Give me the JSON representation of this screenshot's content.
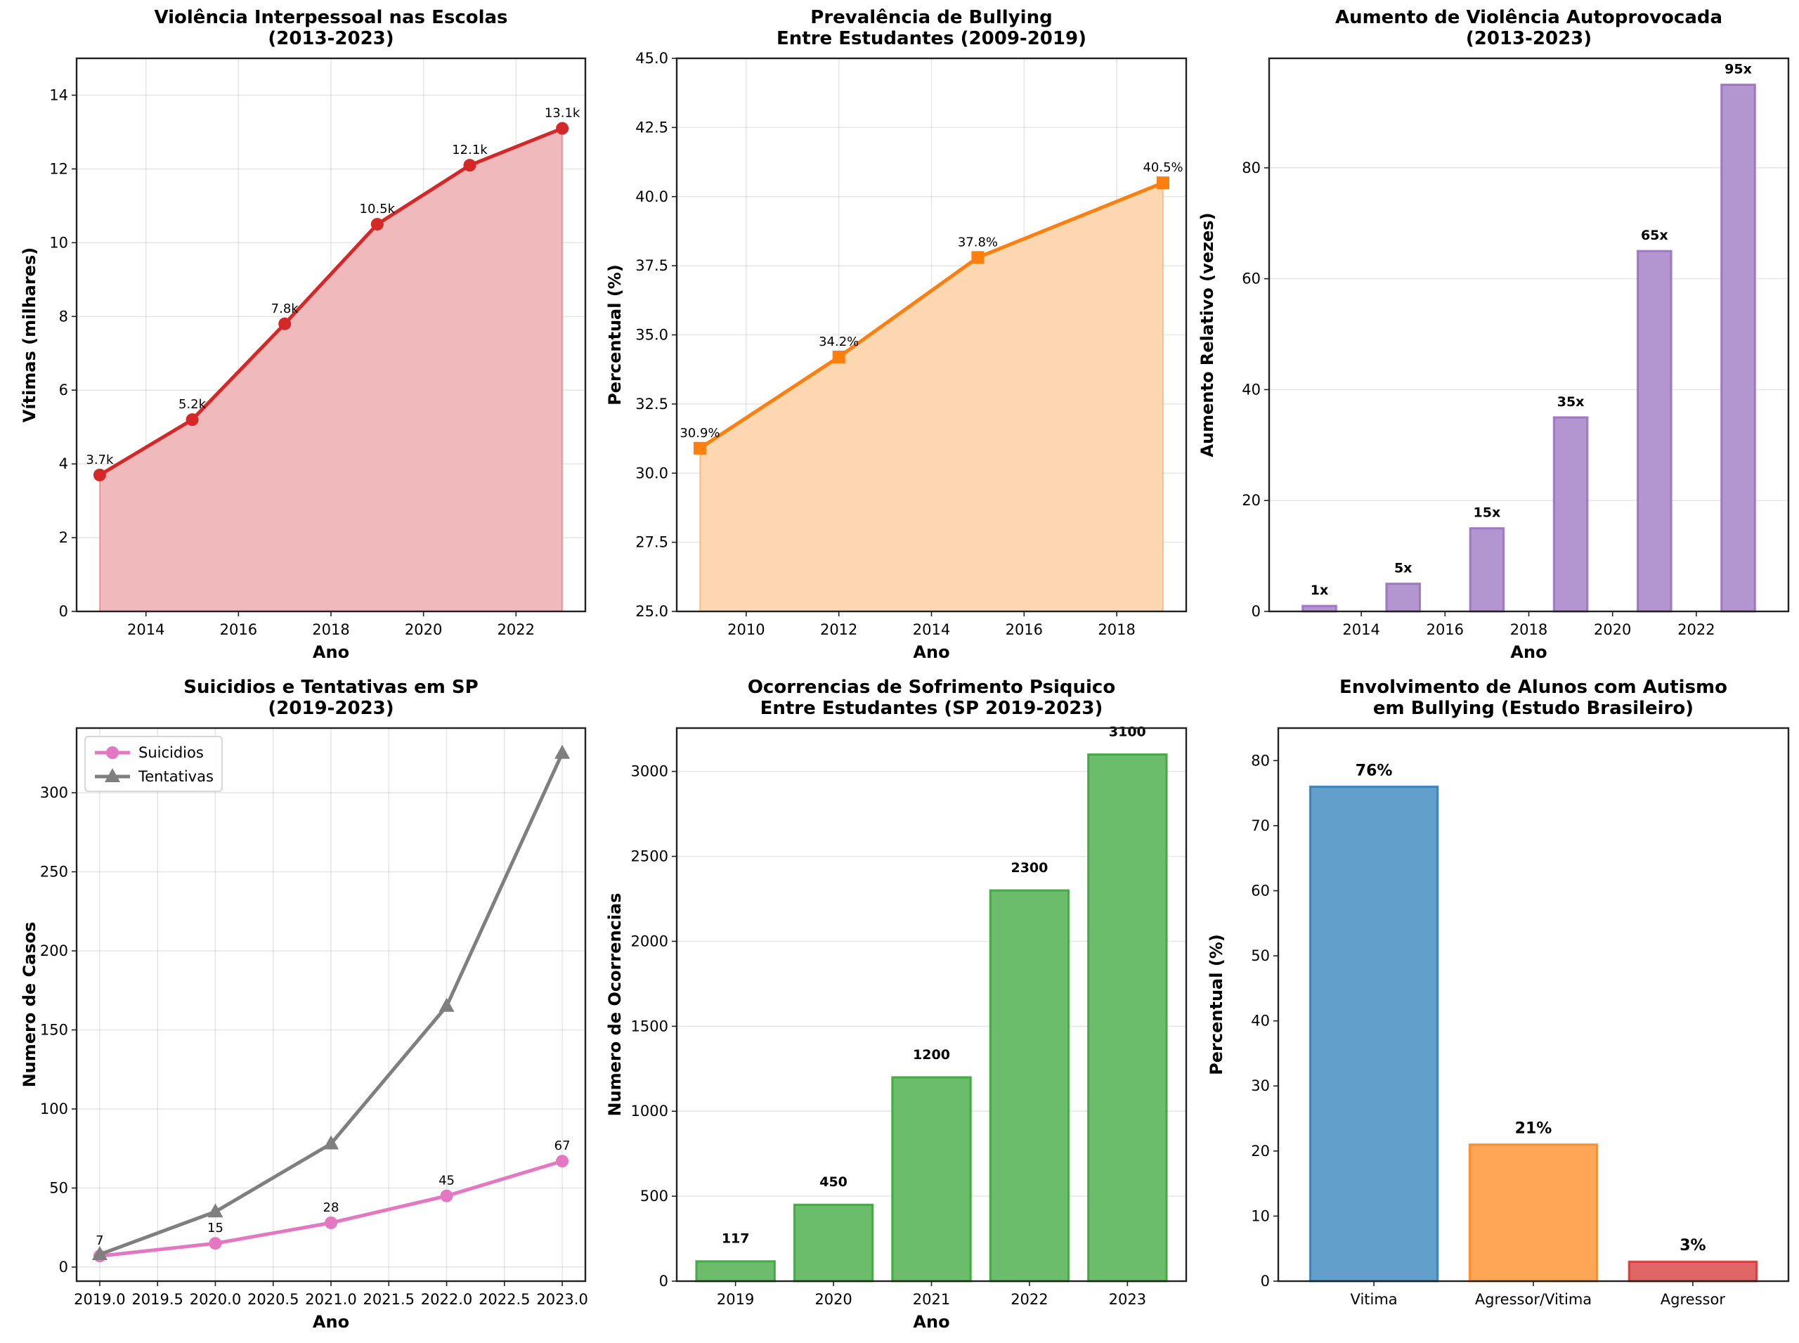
{
  "figure": {
    "layout": "2 rows x 3 columns"
  },
  "chart_data": [
    {
      "id": "violencia-interpessoal",
      "type": "area",
      "title": "Violência Interpessoal nas Escolas\n(2013-2023)",
      "xlabel": "Ano",
      "ylabel": "Vítimas (milhares)",
      "xlim": [
        2012.5,
        2023.5
      ],
      "ylim": [
        0,
        15
      ],
      "xticks": [
        2014,
        2016,
        2018,
        2020,
        2022
      ],
      "yticks": [
        0,
        2,
        4,
        6,
        8,
        10,
        12,
        14
      ],
      "grid": "both",
      "x": [
        2013,
        2015,
        2017,
        2019,
        2021,
        2023
      ],
      "series": [
        {
          "name": "Vítimas",
          "values": [
            3.7,
            5.2,
            7.8,
            10.5,
            12.1,
            13.1
          ],
          "color": "#d62728",
          "fill": "#f0b9bc",
          "marker": "circle",
          "labels": [
            "3.7k",
            "5.2k",
            "7.8k",
            "10.5k",
            "12.1k",
            "13.1k"
          ]
        }
      ]
    },
    {
      "id": "prevalencia-bullying",
      "type": "area",
      "title": "Prevalência de Bullying\nEntre Estudantes (2009-2019)",
      "xlabel": "Ano",
      "ylabel": "Percentual (%)",
      "xlim": [
        2008.5,
        2019.5
      ],
      "ylim": [
        25,
        45
      ],
      "xticks": [
        2010,
        2012,
        2014,
        2016,
        2018
      ],
      "yticks": [
        25.0,
        27.5,
        30.0,
        32.5,
        35.0,
        37.5,
        40.0,
        42.5,
        45.0
      ],
      "ytick_labels": [
        "25.0",
        "27.5",
        "30.0",
        "32.5",
        "35.0",
        "37.5",
        "40.0",
        "42.5",
        "45.0"
      ],
      "grid": "both",
      "x": [
        2009,
        2012,
        2015,
        2019
      ],
      "series": [
        {
          "name": "Bullying",
          "values": [
            30.9,
            34.2,
            37.8,
            40.5
          ],
          "color": "#ff7f0e",
          "fill": "#fdd6b2",
          "marker": "square",
          "labels": [
            "30.9%",
            "34.2%",
            "37.8%",
            "40.5%"
          ]
        }
      ]
    },
    {
      "id": "violencia-autoprovocada",
      "type": "bar",
      "title": "Aumento de Violência Autoprovocada\n(2013-2023)",
      "xlabel": "Ano",
      "ylabel": "Aumento Relativo (vezes)",
      "xlim": [
        2011.8,
        2024.2
      ],
      "ylim": [
        0,
        99.75
      ],
      "xticks": [
        2014,
        2016,
        2018,
        2020,
        2022
      ],
      "yticks": [
        0,
        20,
        40,
        60,
        80
      ],
      "grid": "y",
      "x": [
        2013,
        2015,
        2017,
        2019,
        2021,
        2023
      ],
      "bar_width": 0.8,
      "series": [
        {
          "name": "Aumento",
          "values": [
            1,
            5,
            15,
            35,
            65,
            95
          ],
          "color": "#9467bd",
          "fill": "#b395cf",
          "labels": [
            "1x",
            "5x",
            "15x",
            "35x",
            "65x",
            "95x"
          ]
        }
      ]
    },
    {
      "id": "suicidios-tentativas",
      "type": "line",
      "title": "Suicidios e Tentativas em SP\n(2019-2023)",
      "xlabel": "Ano",
      "ylabel": "Numero de Casos",
      "xlim": [
        2018.8,
        2023.2
      ],
      "ylim": [
        -8.9,
        340.9
      ],
      "xticks": [
        2019.0,
        2019.5,
        2020.0,
        2020.5,
        2021.0,
        2021.5,
        2022.0,
        2022.5,
        2023.0
      ],
      "xtick_labels": [
        "2019.0",
        "2019.5",
        "2020.0",
        "2020.5",
        "2021.0",
        "2021.5",
        "2022.0",
        "2022.5",
        "2023.0"
      ],
      "yticks": [
        0,
        50,
        100,
        150,
        200,
        250,
        300
      ],
      "grid": "both",
      "legend": "upper-left",
      "x": [
        2019,
        2020,
        2021,
        2022,
        2023
      ],
      "series": [
        {
          "name": "Suicidios",
          "values": [
            7,
            15,
            28,
            45,
            67
          ],
          "color": "#e377c2",
          "marker": "circle",
          "labels": [
            "7",
            "15",
            "28",
            "45",
            "67"
          ]
        },
        {
          "name": "Tentativas",
          "values": [
            8,
            35,
            78,
            165,
            325
          ],
          "color": "#7f7f7f",
          "marker": "triangle",
          "labels": []
        }
      ]
    },
    {
      "id": "sofrimento-psiquico",
      "type": "bar",
      "title": "Ocorrencias de Sofrimento Psiquico\nEntre Estudantes (SP 2019-2023)",
      "xlabel": "Ano",
      "ylabel": "Numero de Ocorrencias",
      "ylim": [
        0,
        3255
      ],
      "yticks": [
        0,
        500,
        1000,
        1500,
        2000,
        2500,
        3000
      ],
      "grid": "y",
      "categories": [
        "2019",
        "2020",
        "2021",
        "2022",
        "2023"
      ],
      "series": [
        {
          "name": "Ocorrencias",
          "values": [
            117,
            450,
            1200,
            2300,
            3100
          ],
          "color": "#2ca02c",
          "fill": "#6bbc6b",
          "labels": [
            "117",
            "450",
            "1200",
            "2300",
            "3100"
          ]
        }
      ]
    },
    {
      "id": "autismo-bullying",
      "type": "bar",
      "title": "Envolvimento de Alunos com Autismo\nem Bullying (Estudo Brasileiro)",
      "xlabel": "",
      "ylabel": "Percentual (%)",
      "ylim": [
        0,
        85
      ],
      "yticks": [
        0,
        10,
        20,
        30,
        40,
        50,
        60,
        70,
        80
      ],
      "grid": "none",
      "categories": [
        "Vitima",
        "Agressor/Vitima",
        "Agressor"
      ],
      "series": [
        {
          "name": "Percentual",
          "values": [
            76,
            21,
            3
          ],
          "colors": [
            "#1f77b4",
            "#ff7f0e",
            "#d62728"
          ],
          "fills": [
            "#629fca",
            "#ffa556",
            "#e06666"
          ],
          "labels": [
            "76%",
            "21%",
            "3%"
          ]
        }
      ]
    }
  ]
}
